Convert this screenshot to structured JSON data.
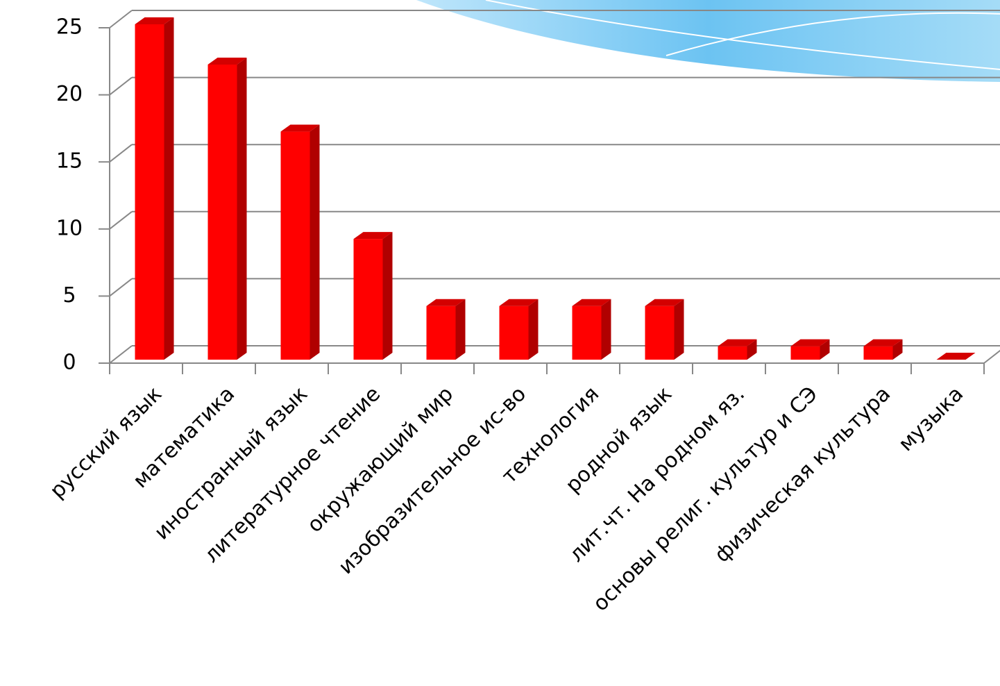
{
  "chart_data": {
    "type": "bar",
    "categories": [
      "русский язык",
      "математика",
      "иностранный язык",
      "литературное чтение",
      "окружающий мир",
      "изобразительное ис-во",
      "технология",
      "родной язык",
      "лит.чт. На родном яз.",
      "основы религ. культур и СЭ",
      "физическая культура",
      "музыка"
    ],
    "values": [
      25,
      22,
      17,
      9,
      4,
      4,
      4,
      4,
      1,
      1,
      1,
      0
    ],
    "color": "#ff0000",
    "ylim": [
      0,
      25
    ],
    "yticks": [
      0,
      5,
      10,
      15,
      20,
      25
    ],
    "grid": true
  }
}
